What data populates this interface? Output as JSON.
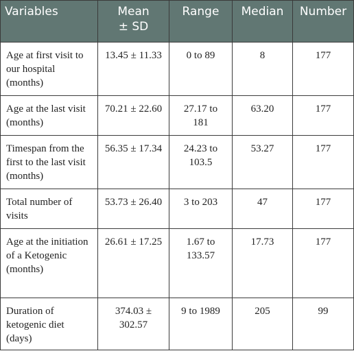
{
  "table": {
    "headers": [
      "Variables",
      "Mean\n± SD",
      "Range",
      "Median",
      "Number"
    ],
    "rows": [
      [
        "Age at first visit to our hospital (months)",
        "13.45 ± 11.33",
        "0 to 89",
        "8",
        "177"
      ],
      [
        "Age at the last visit (months)",
        "70.21 ± 22.60",
        "27.17 to 181",
        "63.20",
        "177"
      ],
      [
        "Timespan from the first to the last visit (months)",
        "56.35 ± 17.34",
        "24.23 to 103.5",
        "53.27",
        "177"
      ],
      [
        "Total number of visits",
        "53.73 ± 26.40",
        "3 to 203",
        "47",
        "177"
      ],
      [
        "Age at the initiation of a Ketogenic (months)",
        "26.61 ± 17.25",
        "1.67 to 133.57",
        "17.73",
        "177"
      ],
      [
        "Duration of ketogenic diet (days)",
        "374.03 ± 302.57",
        "9 to 1989",
        "205",
        "99"
      ]
    ]
  },
  "colors": {
    "header_bg": "#617773",
    "header_text": "#ffffff",
    "border": "#3a3a3a",
    "body_text": "#222222"
  }
}
